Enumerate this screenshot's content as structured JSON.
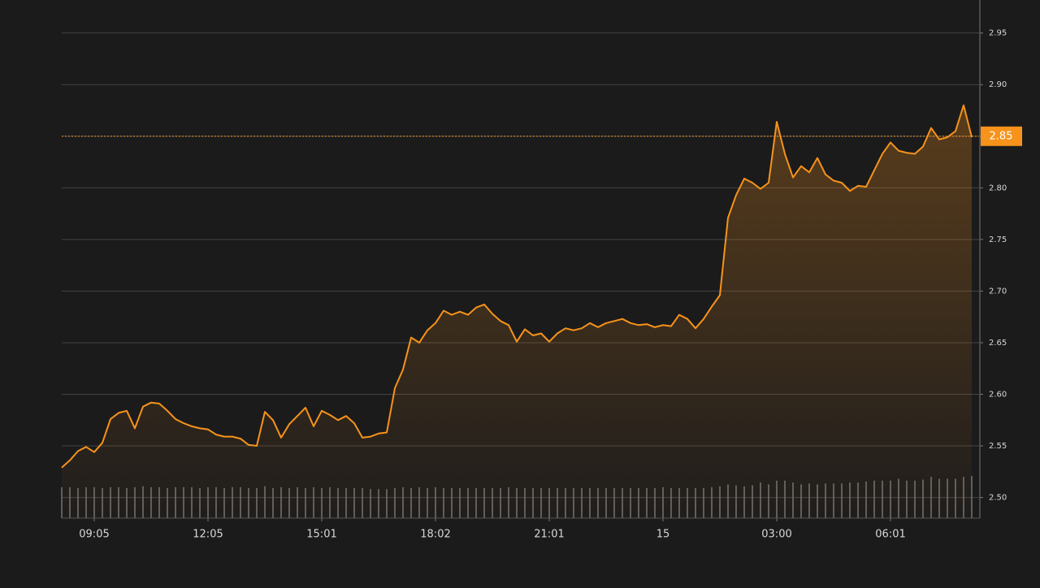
{
  "chart_data": {
    "type": "line",
    "categories": [
      null,
      null,
      null,
      null,
      "09:05",
      null,
      null,
      null,
      null,
      null,
      null,
      null,
      null,
      null,
      null,
      null,
      null,
      null,
      "12:05",
      null,
      null,
      null,
      null,
      null,
      null,
      null,
      null,
      null,
      null,
      null,
      null,
      null,
      "15:01",
      null,
      null,
      null,
      null,
      null,
      null,
      null,
      null,
      null,
      null,
      null,
      null,
      null,
      "18:02",
      null,
      null,
      null,
      null,
      null,
      null,
      null,
      null,
      null,
      null,
      null,
      null,
      null,
      "21:01",
      null,
      null,
      null,
      null,
      null,
      null,
      null,
      null,
      null,
      null,
      null,
      null,
      null,
      "15",
      null,
      null,
      null,
      null,
      null,
      null,
      null,
      null,
      null,
      null,
      null,
      null,
      null,
      "03:00",
      null,
      null,
      null,
      null,
      null,
      null,
      null,
      null,
      null,
      null,
      null,
      null,
      null,
      "06:01",
      null,
      null,
      null,
      null,
      null,
      null,
      null,
      null,
      null,
      null
    ],
    "values": [
      2.529,
      2.536,
      2.545,
      2.549,
      2.544,
      2.553,
      2.576,
      2.582,
      2.584,
      2.567,
      2.588,
      2.592,
      2.591,
      2.584,
      2.576,
      2.572,
      2.569,
      2.567,
      2.566,
      2.561,
      2.559,
      2.559,
      2.557,
      2.551,
      2.55,
      2.583,
      2.575,
      2.558,
      2.571,
      2.579,
      2.587,
      2.569,
      2.584,
      2.58,
      2.575,
      2.579,
      2.572,
      2.558,
      2.559,
      2.562,
      2.563,
      2.606,
      2.624,
      2.655,
      2.65,
      2.662,
      2.669,
      2.681,
      2.677,
      2.68,
      2.677,
      2.684,
      2.687,
      2.678,
      2.671,
      2.667,
      2.651,
      2.663,
      2.657,
      2.659,
      2.651,
      2.659,
      2.664,
      2.662,
      2.664,
      2.669,
      2.665,
      2.669,
      2.671,
      2.673,
      2.669,
      2.667,
      2.668,
      2.665,
      2.667,
      2.666,
      2.677,
      2.673,
      2.664,
      2.673,
      2.685,
      2.696,
      2.771,
      2.793,
      2.809,
      2.805,
      2.799,
      2.805,
      2.864,
      2.833,
      2.81,
      2.821,
      2.815,
      2.829,
      2.813,
      2.807,
      2.805,
      2.797,
      2.802,
      2.801,
      2.817,
      2.833,
      2.844,
      2.836,
      2.834,
      2.833,
      2.84,
      2.858,
      2.847,
      2.849,
      2.855,
      2.88,
      2.849
    ],
    "color": "#f7931a",
    "volume": {
      "color": "#6e6e6e",
      "values": [
        33,
        33,
        32,
        33,
        33,
        32,
        33,
        33,
        32,
        33,
        34,
        33,
        33,
        32,
        33,
        33,
        33,
        32,
        33,
        33,
        32,
        33,
        33,
        32,
        32,
        34,
        32,
        33,
        32,
        33,
        32,
        33,
        32,
        33,
        32,
        32,
        32,
        32,
        31,
        31,
        31,
        32,
        33,
        32,
        33,
        32,
        33,
        32,
        32,
        32,
        32,
        32,
        32,
        32,
        32,
        33,
        32,
        32,
        32,
        32,
        32,
        32,
        32,
        32,
        32,
        32,
        32,
        32,
        32,
        32,
        32,
        32,
        32,
        32,
        33,
        32,
        32,
        32,
        32,
        32,
        33,
        34,
        36,
        35,
        34,
        35,
        38,
        36,
        40,
        40,
        38,
        36,
        37,
        36,
        37,
        37,
        37,
        38,
        38,
        39,
        40,
        40,
        40,
        42,
        40,
        40,
        41,
        44,
        42,
        42,
        42,
        44,
        45
      ]
    },
    "last_price": 2.85,
    "ylim": [
      2.48,
      2.982
    ],
    "yticks": [
      {
        "value": 2.5,
        "label": "2.50"
      },
      2.55,
      {
        "value": 2.6,
        "label": "2.60"
      },
      2.65,
      {
        "value": 2.7,
        "label": "2.70"
      },
      2.75,
      {
        "value": 2.8,
        "label": "2.80"
      },
      2.85,
      {
        "value": 2.9,
        "label": "2.90"
      },
      2.95
    ],
    "grid": true
  }
}
